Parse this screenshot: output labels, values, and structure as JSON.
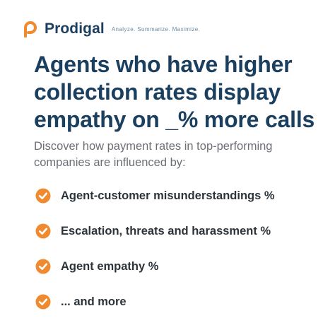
{
  "brand": {
    "name": "Prodigal",
    "tagline": "Analyze. Summarize. Maximize.",
    "accent_color": "#f08a2e",
    "text_color": "#1b3f5f",
    "logo_icon": "prodigal-p-logo"
  },
  "headline": "Agents who have higher collection rates display empathy on _% more calls",
  "subtext": "Discover how payment rates in top-performing companies are influenced by:",
  "checklist": {
    "icon": "orange-check-circle-icon",
    "items": [
      {
        "label": "Agent-customer misunderstandings %"
      },
      {
        "label": "Escalation, threats and harassment %"
      },
      {
        "label": "Agent empathy %"
      },
      {
        "label": "... and  more"
      }
    ]
  }
}
